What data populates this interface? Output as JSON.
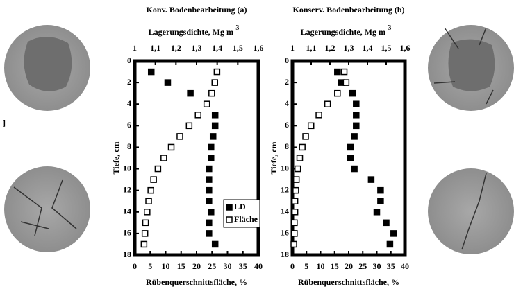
{
  "fragment": "]",
  "chart_data": [
    {
      "type": "line",
      "title": "Konv. Bodenbearbeitung (a)",
      "x2_label": "Lagerungsdichte, Mg m",
      "x2_label_sup": "-3",
      "x_label": "Rübenquerschnittsfläche, %",
      "y_label": "Tiefe, cm",
      "y": [
        1,
        2,
        3,
        4,
        5,
        6,
        7,
        8,
        9,
        10,
        11,
        12,
        13,
        14,
        15,
        16,
        17
      ],
      "ylim": [
        0,
        18
      ],
      "yticks": [
        0,
        2,
        4,
        6,
        8,
        10,
        12,
        14,
        16,
        18
      ],
      "xlim": [
        0,
        40
      ],
      "xticks": [
        0,
        5,
        10,
        15,
        20,
        25,
        30,
        35,
        40
      ],
      "x2lim": [
        1,
        1.6
      ],
      "x2ticks": [
        1,
        {
          "value": 1.1,
          "label": "1,1"
        },
        {
          "value": 1.2,
          "label": "1,2"
        },
        {
          "value": 1.3,
          "label": "1,3"
        },
        {
          "value": 1.4,
          "label": "1,4"
        },
        {
          "value": 1.5,
          "label": "1,5"
        },
        {
          "value": 1.6,
          "label": "1,6"
        }
      ],
      "legend": "lower right",
      "series": [
        {
          "name": "LD",
          "color": "#000000",
          "axis": "x2",
          "values": [
            1.08,
            1.16,
            1.27,
            1.35,
            1.39,
            1.39,
            1.38,
            1.37,
            1.37,
            1.36,
            1.36,
            1.36,
            1.36,
            1.37,
            1.36,
            1.36,
            1.39
          ]
        },
        {
          "name": "Fläche",
          "color": "#ffffff",
          "axis": "x",
          "values": [
            26.6,
            25.9,
            24.9,
            23.3,
            20.5,
            17.6,
            14.6,
            11.8,
            9.4,
            7.5,
            6.1,
            5.2,
            4.5,
            4.0,
            3.5,
            3.3,
            3.0
          ]
        }
      ]
    },
    {
      "type": "line",
      "title": "Konserv. Bodenbearbeitung (b)",
      "x2_label": "Lagerungsdichte, Mg m",
      "x2_label_sup": "-3",
      "x_label": "Rübenquerschnittsfläche, %",
      "y_label": "Tiefe, cm",
      "y": [
        1,
        2,
        3,
        4,
        5,
        6,
        7,
        8,
        9,
        10,
        11,
        12,
        13,
        14,
        15,
        16,
        17
      ],
      "ylim": [
        0,
        18
      ],
      "yticks": [
        0,
        2,
        4,
        6,
        8,
        10,
        12,
        14,
        16,
        18
      ],
      "xlim": [
        0,
        40
      ],
      "xticks": [
        0,
        5,
        10,
        15,
        20,
        25,
        30,
        35,
        40
      ],
      "x2lim": [
        1,
        1.6
      ],
      "x2ticks": [
        1,
        {
          "value": 1.1,
          "label": "1,1"
        },
        {
          "value": 1.2,
          "label": "1,2"
        },
        {
          "value": 1.3,
          "label": "1,3"
        },
        {
          "value": 1.4,
          "label": "1,4"
        },
        {
          "value": 1.5,
          "label": "1,5"
        },
        {
          "value": 1.6,
          "label": "1,6"
        }
      ],
      "legend": false,
      "series": [
        {
          "name": "LD",
          "color": "#000000",
          "axis": "x2",
          "values": [
            1.24,
            1.26,
            1.32,
            1.34,
            1.34,
            1.34,
            1.33,
            1.31,
            1.31,
            1.33,
            1.42,
            1.47,
            1.47,
            1.45,
            1.5,
            1.54,
            1.52
          ]
        },
        {
          "name": "Fläche",
          "color": "#ffffff",
          "axis": "x",
          "values": [
            18.4,
            19.1,
            16.0,
            12.5,
            9.4,
            6.6,
            4.7,
            3.5,
            2.6,
            1.9,
            1.4,
            1.2,
            0.9,
            0.9,
            0.7,
            0.7,
            0.5
          ]
        }
      ]
    }
  ]
}
